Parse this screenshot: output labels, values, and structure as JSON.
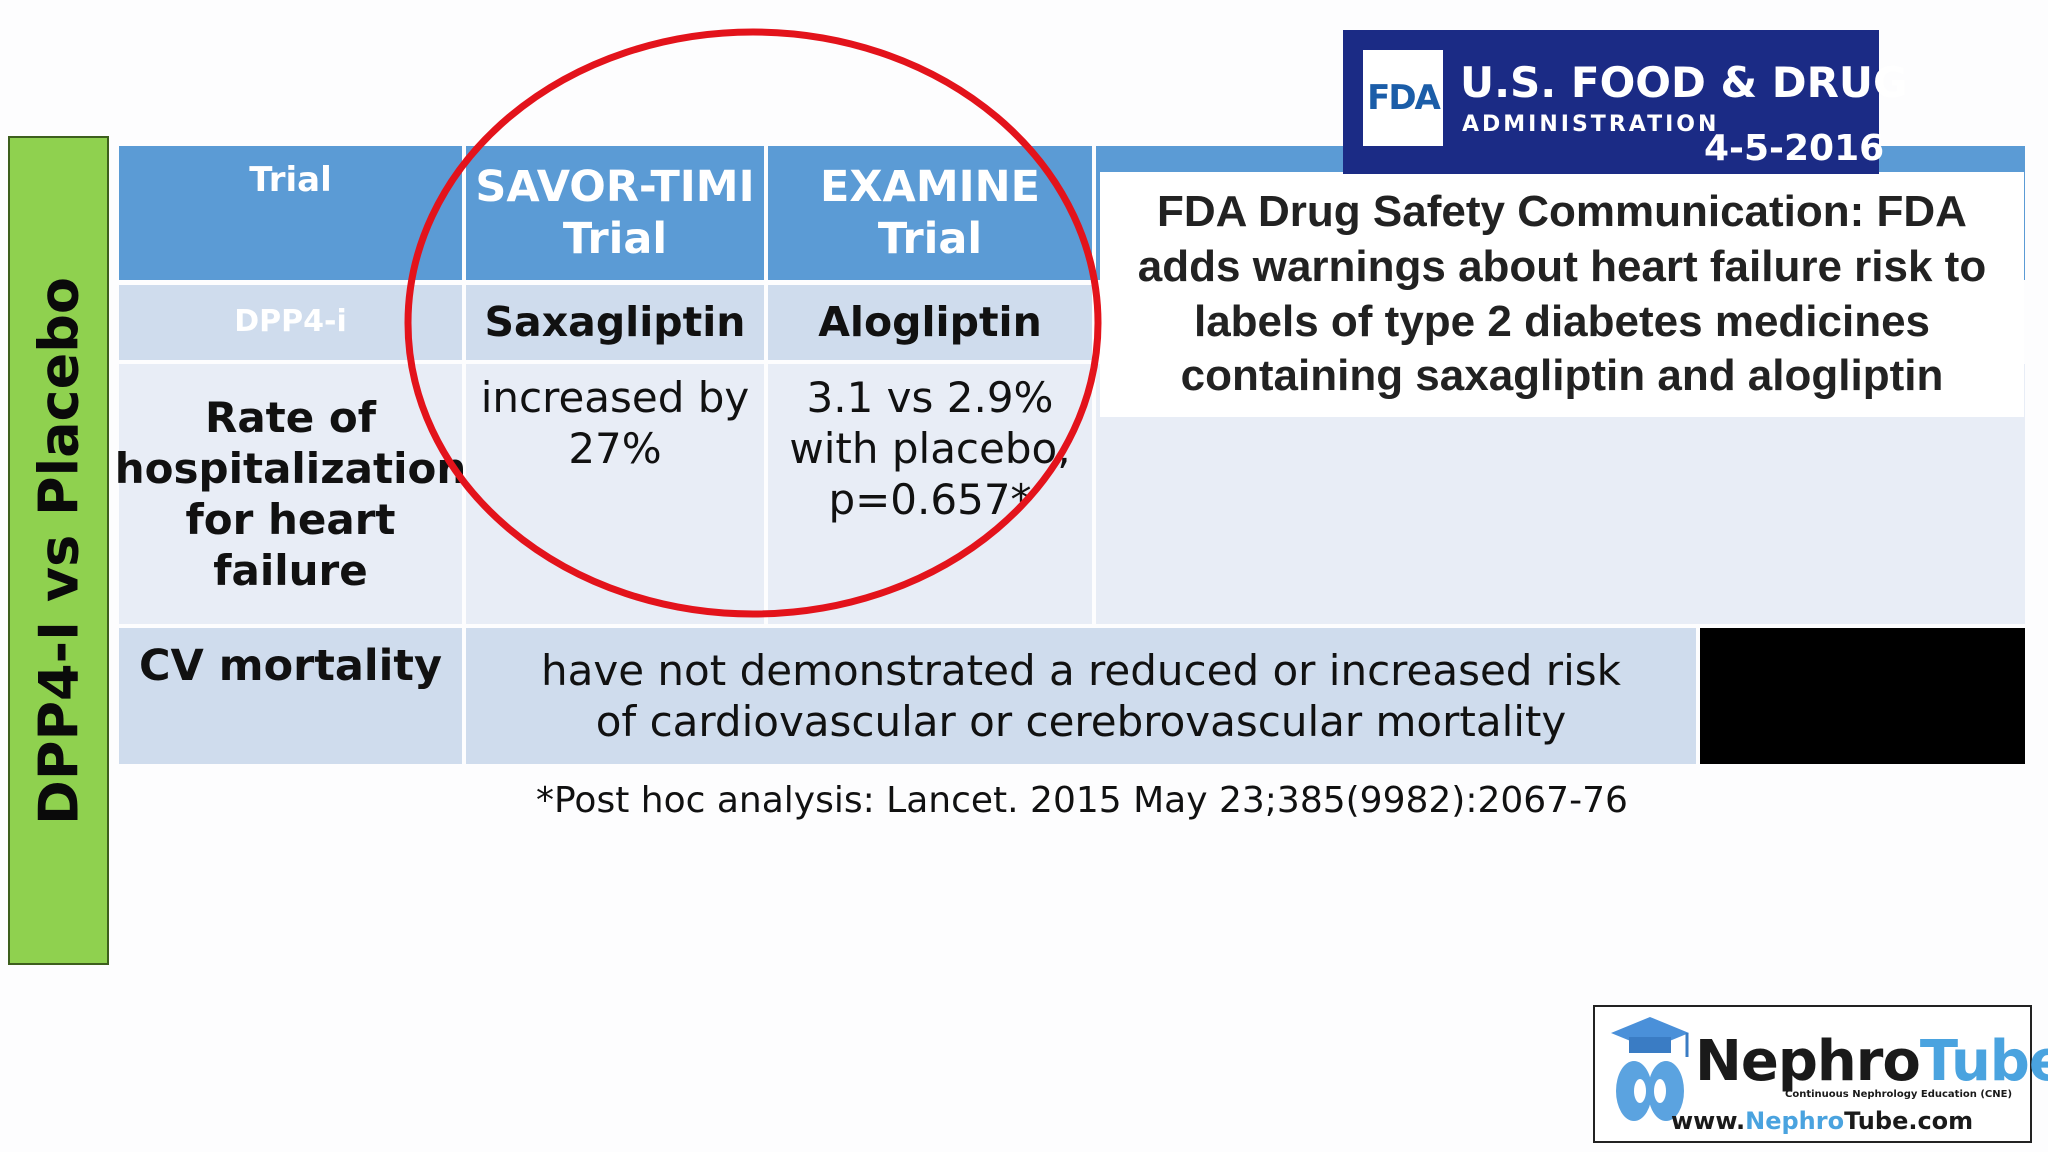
{
  "side_label": "DPP4-I vs Placebo",
  "table": {
    "header": {
      "col0": "Trial",
      "col1": "SAVOR-TIMI Trial",
      "col2": "EXAMINE Trial"
    },
    "drug_row": {
      "label": "DPP4-i",
      "col1": "Saxagliptin",
      "col2": "Alogliptin"
    },
    "hf_row": {
      "label": "Rate of hospitalization for heart failure",
      "col1": "increased by 27%",
      "col2": "3.1 vs 2.9% with placebo, p=0.657*"
    },
    "cv_row": {
      "label": "CV mortality",
      "text": "have not demonstrated a reduced or increased risk of cardiovascular or cerebrovascular mortality"
    }
  },
  "footnote": "*Post hoc analysis: Lancet. 2015 May 23;385(9982):2067-76",
  "fda": {
    "logo_text": "FDA",
    "line1": "U.S. FOOD & DRUG",
    "line2": "ADMINISTRATION",
    "date": "4-5-2016",
    "headline": "FDA Drug Safety Communication: FDA adds warnings about heart failure risk to labels of type 2 diabetes medicines containing saxagliptin and alogliptin"
  },
  "nephrotube": {
    "name_a": "Nephro",
    "name_b": "Tube",
    "tagline": "Continuous Nephrology Education (CNE)",
    "url_a": "www.",
    "url_b": "Nephro",
    "url_c": "Tube.com"
  },
  "colors": {
    "header_blue": "#5b9bd5",
    "green_label": "#8fd14f",
    "fda_navy": "#1b2b85",
    "circle_red": "#e3131b"
  }
}
